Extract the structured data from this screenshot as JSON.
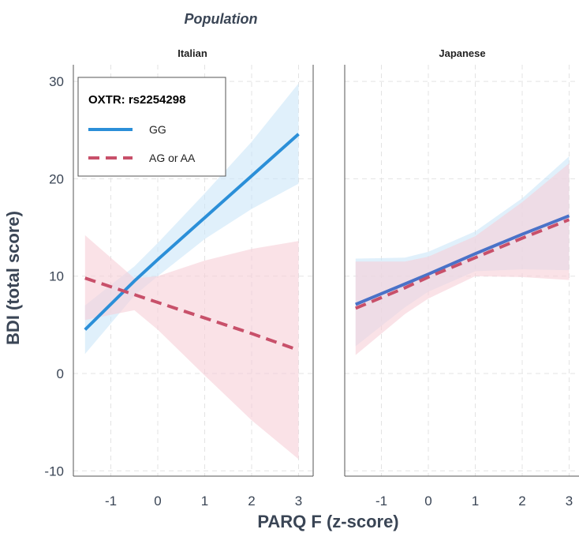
{
  "chart_data": {
    "type": "line",
    "supertitle": "Population",
    "xlabel": "PARQ F (z-score)",
    "ylabel": "BDI (total score)",
    "xlim": [
      -1.65,
      3.1
    ],
    "ylim": [
      -11,
      31
    ],
    "x_ticks": [
      -1,
      0,
      1,
      2,
      3
    ],
    "y_ticks": [
      -10,
      0,
      10,
      20,
      30
    ],
    "grid": true,
    "legend": {
      "title": "OXTR: rs2254298",
      "position": "top-left",
      "entries": [
        {
          "label": "GG",
          "color": "#2b8fd8",
          "style": "solid"
        },
        {
          "label": "AG or AA",
          "color": "#c8506a",
          "style": "dashed"
        }
      ]
    },
    "panels": [
      {
        "title": "Italian",
        "series": [
          {
            "name": "GG",
            "color": "#2b8fd8",
            "band_color": "#cde6f8",
            "x": [
              -1.55,
              -0.5,
              0,
              1,
              2,
              3
            ],
            "y": [
              4.5,
              9.5,
              11.7,
              16.0,
              20.3,
              24.6
            ],
            "lower": [
              2.0,
              8.0,
              10.0,
              13.8,
              16.9,
              19.5
            ],
            "upper": [
              7.0,
              11.0,
              13.4,
              18.5,
              23.8,
              29.8
            ]
          },
          {
            "name": "AG or AA",
            "color": "#c8506a",
            "band_color": "#f7d0d8",
            "x": [
              -1.55,
              -0.5,
              0,
              1,
              2,
              3
            ],
            "y": [
              9.8,
              8.1,
              7.3,
              5.7,
              4.1,
              2.4
            ],
            "lower": [
              5.5,
              6.5,
              4.5,
              -0.2,
              -4.8,
              -8.8
            ],
            "upper": [
              14.2,
              9.8,
              10.0,
              11.6,
              12.8,
              13.6
            ]
          }
        ]
      },
      {
        "title": "Japanese",
        "series": [
          {
            "name": "GG",
            "color": "#4a72c8",
            "band_color": "#cde6f8",
            "x": [
              -1.55,
              -0.5,
              0,
              1,
              2,
              3
            ],
            "y": [
              7.1,
              9.2,
              10.2,
              12.3,
              14.3,
              16.2
            ],
            "lower": [
              2.8,
              6.8,
              8.4,
              10.5,
              10.7,
              10.6
            ],
            "upper": [
              11.8,
              11.9,
              12.5,
              14.6,
              18.0,
              22.3
            ]
          },
          {
            "name": "AG or AA",
            "color": "#c8506a",
            "band_color": "#f7d0d8",
            "x": [
              -1.55,
              -0.5,
              0,
              1,
              2,
              3
            ],
            "y": [
              6.7,
              8.8,
              9.9,
              11.9,
              13.9,
              15.8
            ],
            "lower": [
              1.9,
              6.1,
              7.7,
              10.0,
              9.9,
              9.6
            ],
            "upper": [
              11.5,
              11.5,
              12.0,
              14.1,
              17.6,
              21.6
            ]
          }
        ]
      }
    ]
  },
  "colors": {
    "grid": "#e3e3e3",
    "panel_border": "#555555",
    "text": "#3a4555"
  }
}
